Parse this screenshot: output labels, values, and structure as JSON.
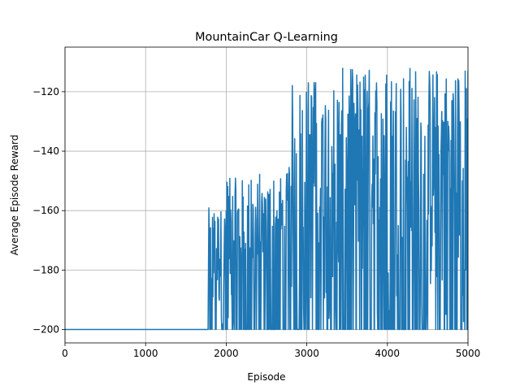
{
  "chart_data": {
    "type": "line",
    "title": "MountainCar Q-Learning",
    "xlabel": "Episode",
    "ylabel": "Average Episode Reward",
    "xlim": [
      0,
      5000
    ],
    "ylim": [
      -204.5,
      -105
    ],
    "xticks": [
      0,
      1000,
      2000,
      3000,
      4000,
      5000
    ],
    "yticks": [
      -200,
      -180,
      -160,
      -140,
      -120
    ],
    "grid": true,
    "series": [
      {
        "color": "#1f77b4",
        "segments": [
          {
            "x_start": 0,
            "x_end": 1780,
            "floor": -200,
            "ceiling": -200
          },
          {
            "x_start": 1780,
            "x_end": 2000,
            "floor": -200,
            "ceiling": -159
          },
          {
            "x_start": 2000,
            "x_end": 2400,
            "floor": -200,
            "ceiling": -149
          },
          {
            "x_start": 2400,
            "x_end": 2780,
            "floor": -200,
            "ceiling": -147
          },
          {
            "x_start": 2780,
            "x_end": 3000,
            "floor": -200,
            "ceiling": -117
          },
          {
            "x_start": 3000,
            "x_end": 3370,
            "floor": -200,
            "ceiling": -115
          },
          {
            "x_start": 3370,
            "x_end": 3700,
            "floor": -200,
            "ceiling": -112
          },
          {
            "x_start": 3700,
            "x_end": 4200,
            "floor": -200,
            "ceiling": -111
          },
          {
            "x_start": 4200,
            "x_end": 5000,
            "floor": -200,
            "ceiling": -111
          }
        ]
      }
    ]
  }
}
